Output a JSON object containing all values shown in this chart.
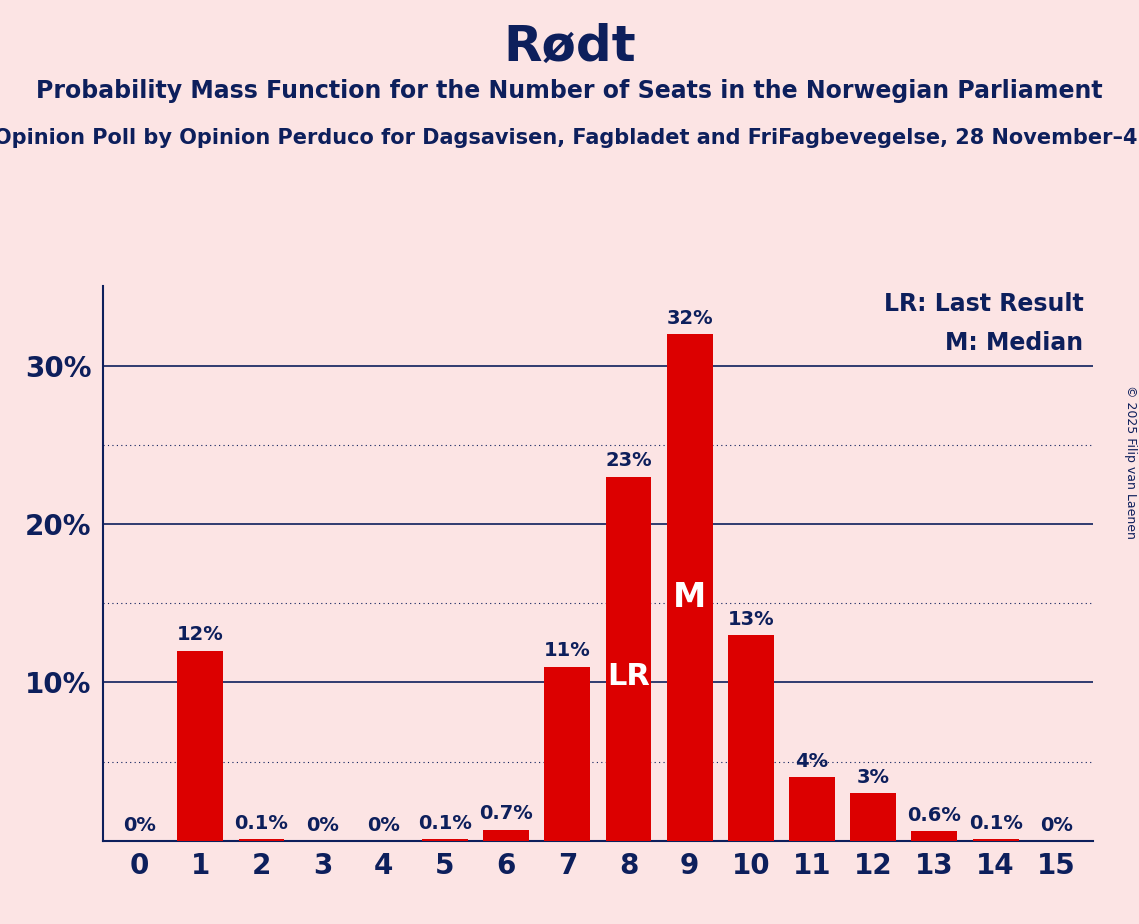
{
  "title": "Rødt",
  "subtitle1": "Probability Mass Function for the Number of Seats in the Norwegian Parliament",
  "subtitle2": "Opinion Poll by Opinion Perduco for Dagsavisen, Fagbladet and FriFagbevegelse, 28 November–4",
  "copyright": "© 2025 Filip van Laenen",
  "categories": [
    0,
    1,
    2,
    3,
    4,
    5,
    6,
    7,
    8,
    9,
    10,
    11,
    12,
    13,
    14,
    15
  ],
  "values": [
    0.0,
    12.0,
    0.1,
    0.0,
    0.0,
    0.1,
    0.7,
    11.0,
    23.0,
    32.0,
    13.0,
    4.0,
    3.0,
    0.6,
    0.1,
    0.0
  ],
  "labels": [
    "0%",
    "12%",
    "0.1%",
    "0%",
    "0%",
    "0.1%",
    "0.7%",
    "11%",
    "23%",
    "32%",
    "13%",
    "4%",
    "3%",
    "0.6%",
    "0.1%",
    "0%"
  ],
  "bar_color": "#dc0000",
  "background_color": "#fce4e4",
  "text_color": "#0d1f5c",
  "title_color": "#0d1f5c",
  "grid_color": "#0d1f5c",
  "ylim": [
    0,
    35
  ],
  "yticks": [
    10,
    20,
    30
  ],
  "ytick_labels": [
    "10%",
    "20%",
    "30%"
  ],
  "legend_lr": "LR: Last Result",
  "legend_m": "M: Median",
  "lr_bar": 8,
  "median_bar": 9,
  "solid_grid_lines": [
    10,
    20,
    30
  ],
  "dotted_grid_lines": [
    5,
    15,
    25
  ],
  "title_fontsize": 36,
  "subtitle1_fontsize": 17,
  "subtitle2_fontsize": 15,
  "ytick_fontsize": 20,
  "xtick_fontsize": 20,
  "label_fontsize": 14,
  "lr_fontsize": 22,
  "m_fontsize": 24,
  "legend_fontsize": 17
}
